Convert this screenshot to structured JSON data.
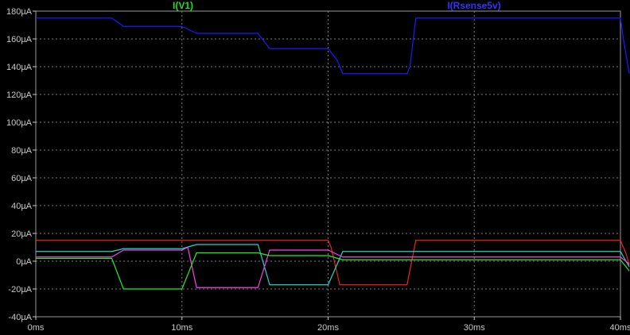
{
  "chart_data": {
    "type": "line",
    "title": "",
    "xlabel": "",
    "ylabel": "",
    "grid": true,
    "xlim": [
      0,
      40
    ],
    "ylim": [
      -40,
      180
    ],
    "x_ticks": [
      {
        "value": 0,
        "label": "0ms"
      },
      {
        "value": 10,
        "label": "10ms"
      },
      {
        "value": 20,
        "label": "20ms"
      },
      {
        "value": 30,
        "label": "30ms"
      },
      {
        "value": 40,
        "label": "40ms"
      }
    ],
    "y_ticks": [
      {
        "value": 180,
        "label": "180µA"
      },
      {
        "value": 160,
        "label": "160µA"
      },
      {
        "value": 140,
        "label": "140µA"
      },
      {
        "value": 120,
        "label": "120µA"
      },
      {
        "value": 100,
        "label": "100µA"
      },
      {
        "value": 80,
        "label": "80µA"
      },
      {
        "value": 60,
        "label": "60µA"
      },
      {
        "value": 40,
        "label": "40µA"
      },
      {
        "value": 20,
        "label": "20µA"
      },
      {
        "value": 0,
        "label": "0µA"
      },
      {
        "value": -20,
        "label": "-20µA"
      },
      {
        "value": -40,
        "label": "-40µA"
      }
    ],
    "legend": [
      {
        "label": "I(V1)",
        "color": "#22dd22",
        "position": "top-left"
      },
      {
        "label": "I(Rsense5v)",
        "color": "#3333ff",
        "position": "top-right"
      }
    ],
    "series": [
      {
        "color": "#1a1aff",
        "points": [
          [
            0,
            175
          ],
          [
            5.2,
            175
          ],
          [
            6,
            169
          ],
          [
            10,
            169
          ],
          [
            10.4,
            167
          ],
          [
            11,
            164
          ],
          [
            15.2,
            164
          ],
          [
            16,
            153
          ],
          [
            20,
            153
          ],
          [
            20.6,
            145
          ],
          [
            21,
            135
          ],
          [
            25.4,
            135
          ],
          [
            25.6,
            140
          ],
          [
            26,
            175
          ],
          [
            40,
            175
          ],
          [
            40.2,
            160
          ],
          [
            40.6,
            135
          ]
        ]
      },
      {
        "color": "#ee2222",
        "points": [
          [
            0,
            15
          ],
          [
            20,
            15
          ],
          [
            20.2,
            10
          ],
          [
            20.8,
            -17
          ],
          [
            25.4,
            -17
          ],
          [
            26,
            15
          ],
          [
            40,
            15
          ],
          [
            40.4,
            5
          ],
          [
            40.6,
            -3
          ]
        ]
      },
      {
        "color": "#20d8c8",
        "points": [
          [
            0,
            7
          ],
          [
            5.2,
            7
          ],
          [
            6,
            9
          ],
          [
            10,
            9
          ],
          [
            11,
            12
          ],
          [
            15.2,
            12
          ],
          [
            16,
            -17
          ],
          [
            20,
            -17
          ],
          [
            21,
            7
          ],
          [
            40,
            7
          ],
          [
            40.6,
            -4
          ]
        ]
      },
      {
        "color": "#ff3ef0",
        "points": [
          [
            0,
            3
          ],
          [
            5.2,
            3
          ],
          [
            6,
            8
          ],
          [
            10,
            8
          ],
          [
            10.4,
            10
          ],
          [
            11,
            -19
          ],
          [
            15.2,
            -19
          ],
          [
            16,
            8
          ],
          [
            20,
            8
          ],
          [
            21,
            3
          ],
          [
            40,
            3
          ],
          [
            40.6,
            -2
          ]
        ]
      },
      {
        "color": "#22ee22",
        "points": [
          [
            0,
            2
          ],
          [
            5.2,
            2
          ],
          [
            6,
            -20
          ],
          [
            10,
            -20
          ],
          [
            11,
            6
          ],
          [
            15.2,
            6
          ],
          [
            16,
            4
          ],
          [
            20,
            4
          ],
          [
            21,
            1
          ],
          [
            40,
            1
          ],
          [
            40.6,
            -7
          ]
        ]
      }
    ]
  }
}
